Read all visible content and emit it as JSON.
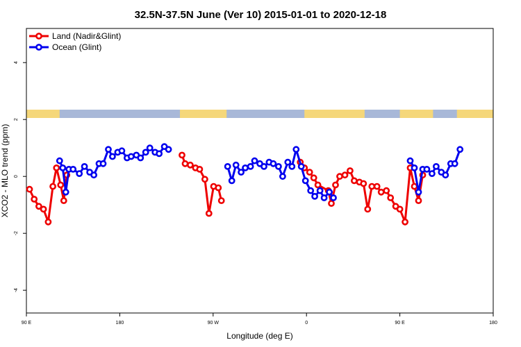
{
  "chart_data": {
    "type": "line",
    "title": "32.5N-37.5N June (Ver 10)   2015-01-01 to 2020-12-18",
    "xlabel": "Longitude (deg E)",
    "ylabel": "XCO2 - MLO trend (ppm)",
    "ylim": [
      -4.8,
      5.2
    ],
    "xticks": [
      {
        "x": 90,
        "label": "90 E"
      },
      {
        "x": 180,
        "label": "180"
      },
      {
        "x": 270,
        "label": "90 W"
      },
      {
        "x": 360,
        "label": "0"
      },
      {
        "x": 450,
        "label": "90 E"
      },
      {
        "x": 540,
        "label": "180"
      }
    ],
    "yticks": [
      {
        "y": -4,
        "label": "-4"
      },
      {
        "y": -2,
        "label": "-2"
      },
      {
        "y": 0,
        "label": "0"
      },
      {
        "y": 2,
        "label": "2"
      },
      {
        "y": 4,
        "label": "4"
      }
    ],
    "xlim": [
      90,
      540
    ],
    "legend_position": "top-left",
    "land_strip": {
      "ocean_color": "#a8b8d8",
      "land_color": "#f5d77a",
      "land_segments": [
        [
          90,
          122
        ],
        [
          238,
          283
        ],
        [
          358,
          416
        ],
        [
          450,
          482
        ],
        [
          505,
          540
        ]
      ]
    },
    "series": [
      {
        "name": "Land (Nadir&Glint)",
        "color": "#ee0000",
        "segments": [
          [
            [
              93,
              -0.45
            ],
            [
              97.5,
              -0.8
            ],
            [
              102,
              -1.05
            ],
            [
              106.5,
              -1.15
            ],
            [
              111,
              -1.6
            ],
            [
              115.5,
              -0.35
            ],
            [
              119,
              0.3
            ],
            [
              123,
              -0.3
            ],
            [
              126,
              -0.85
            ],
            [
              129,
              0.05
            ]
          ],
          [
            [
              240,
              0.75
            ],
            [
              243,
              0.45
            ],
            [
              248,
              0.4
            ],
            [
              253,
              0.3
            ],
            [
              257,
              0.25
            ],
            [
              262,
              -0.1
            ],
            [
              266,
              -1.3
            ],
            [
              270.5,
              -0.35
            ],
            [
              275,
              -0.4
            ],
            [
              278,
              -0.85
            ]
          ],
          [
            [
              354,
              0.5
            ],
            [
              358,
              0.3
            ],
            [
              363,
              0.15
            ],
            [
              367,
              -0.05
            ],
            [
              371,
              -0.3
            ],
            [
              381,
              -0.5
            ],
            [
              384,
              -0.95
            ],
            [
              388,
              -0.3
            ],
            [
              392,
              0.0
            ],
            [
              397,
              0.05
            ],
            [
              402,
              0.2
            ],
            [
              406,
              -0.15
            ],
            [
              411,
              -0.2
            ],
            [
              415,
              -0.25
            ],
            [
              419,
              -1.15
            ],
            [
              423,
              -0.35
            ],
            [
              428,
              -0.35
            ],
            [
              432,
              -0.55
            ],
            [
              437,
              -0.5
            ],
            [
              441,
              -0.75
            ],
            [
              446,
              -1.05
            ],
            [
              450,
              -1.15
            ],
            [
              455,
              -1.6
            ],
            [
              460,
              0.3
            ],
            [
              464,
              -0.35
            ],
            [
              468,
              -0.85
            ],
            [
              472,
              0.05
            ]
          ]
        ]
      },
      {
        "name": "Ocean (Glint)",
        "color": "#0000ee",
        "segments": [
          [
            [
              122,
              0.55
            ],
            [
              125,
              0.3
            ],
            [
              128,
              -0.55
            ],
            [
              131,
              0.25
            ],
            [
              135,
              0.25
            ],
            [
              141,
              0.1
            ],
            [
              146,
              0.35
            ],
            [
              151,
              0.15
            ],
            [
              155,
              0.05
            ],
            [
              160,
              0.45
            ],
            [
              164,
              0.45
            ],
            [
              169,
              0.95
            ],
            [
              173,
              0.7
            ],
            [
              178,
              0.85
            ],
            [
              182,
              0.9
            ],
            [
              187,
              0.65
            ],
            [
              191,
              0.7
            ],
            [
              196,
              0.75
            ],
            [
              200,
              0.65
            ],
            [
              205,
              0.85
            ],
            [
              209,
              1.0
            ],
            [
              214,
              0.85
            ],
            [
              218,
              0.8
            ],
            [
              223,
              1.05
            ],
            [
              227,
              0.95
            ]
          ],
          [
            [
              284,
              0.35
            ],
            [
              288,
              -0.15
            ],
            [
              292,
              0.4
            ],
            [
              297,
              0.15
            ],
            [
              301,
              0.3
            ],
            [
              306,
              0.35
            ],
            [
              310,
              0.55
            ],
            [
              315,
              0.45
            ],
            [
              319,
              0.35
            ],
            [
              324,
              0.5
            ],
            [
              328,
              0.45
            ],
            [
              333,
              0.35
            ],
            [
              337,
              0.0
            ],
            [
              342,
              0.5
            ],
            [
              346,
              0.35
            ],
            [
              350,
              0.95
            ],
            [
              355,
              0.35
            ],
            [
              359,
              -0.15
            ],
            [
              364,
              -0.5
            ],
            [
              368,
              -0.7
            ],
            [
              373,
              -0.5
            ],
            [
              377,
              -0.75
            ],
            [
              382,
              -0.55
            ],
            [
              386,
              -0.75
            ]
          ],
          [
            [
              460,
              0.55
            ],
            [
              464,
              0.3
            ],
            [
              468,
              -0.55
            ],
            [
              472,
              0.25
            ],
            [
              476,
              0.25
            ],
            [
              481,
              0.1
            ],
            [
              485,
              0.35
            ],
            [
              490,
              0.15
            ],
            [
              494,
              0.05
            ],
            [
              499,
              0.45
            ],
            [
              503,
              0.45
            ],
            [
              508,
              0.95
            ]
          ]
        ]
      }
    ]
  }
}
